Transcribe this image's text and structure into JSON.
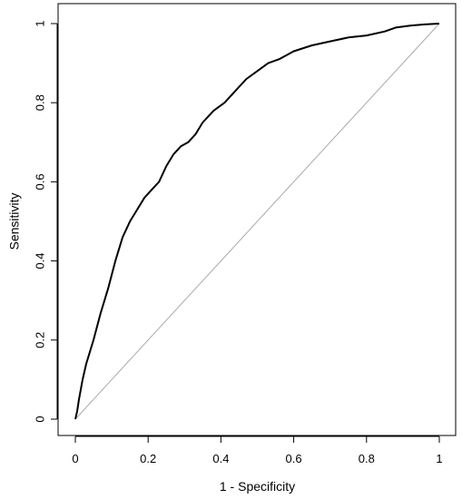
{
  "chart_data": {
    "type": "line",
    "title": "",
    "xlabel": "1 - Specificity",
    "ylabel": "Sensitivity",
    "xlim": [
      0,
      1
    ],
    "ylim": [
      0,
      1
    ],
    "x_ticks": [
      0,
      0.2,
      0.4,
      0.6,
      0.8,
      1
    ],
    "y_ticks": [
      0,
      0.2,
      0.4,
      0.6,
      0.8,
      1
    ],
    "x_tick_labels": [
      "0",
      "0.2",
      "0.4",
      "0.6",
      "0.8",
      "1"
    ],
    "y_tick_labels": [
      "0",
      "0.2",
      "0.4",
      "0.6",
      "0.8",
      "1"
    ],
    "grid": false,
    "legend": "none",
    "series": [
      {
        "color": "#000000",
        "x": [
          0,
          0.005,
          0.01,
          0.02,
          0.03,
          0.05,
          0.07,
          0.09,
          0.11,
          0.13,
          0.15,
          0.17,
          0.19,
          0.21,
          0.23,
          0.25,
          0.27,
          0.29,
          0.31,
          0.33,
          0.35,
          0.38,
          0.41,
          0.44,
          0.47,
          0.5,
          0.53,
          0.56,
          0.6,
          0.65,
          0.7,
          0.75,
          0.8,
          0.85,
          0.88,
          0.92,
          0.96,
          1.0
        ],
        "y": [
          0,
          0.02,
          0.05,
          0.1,
          0.14,
          0.2,
          0.27,
          0.33,
          0.4,
          0.46,
          0.5,
          0.53,
          0.56,
          0.58,
          0.6,
          0.64,
          0.67,
          0.69,
          0.7,
          0.72,
          0.75,
          0.78,
          0.8,
          0.83,
          0.86,
          0.88,
          0.9,
          0.91,
          0.93,
          0.945,
          0.955,
          0.965,
          0.97,
          0.98,
          0.99,
          0.995,
          0.998,
          1.0
        ]
      },
      {
        "color": "#aaaaaa",
        "x": [
          0,
          1
        ],
        "y": [
          0,
          1
        ]
      }
    ]
  }
}
